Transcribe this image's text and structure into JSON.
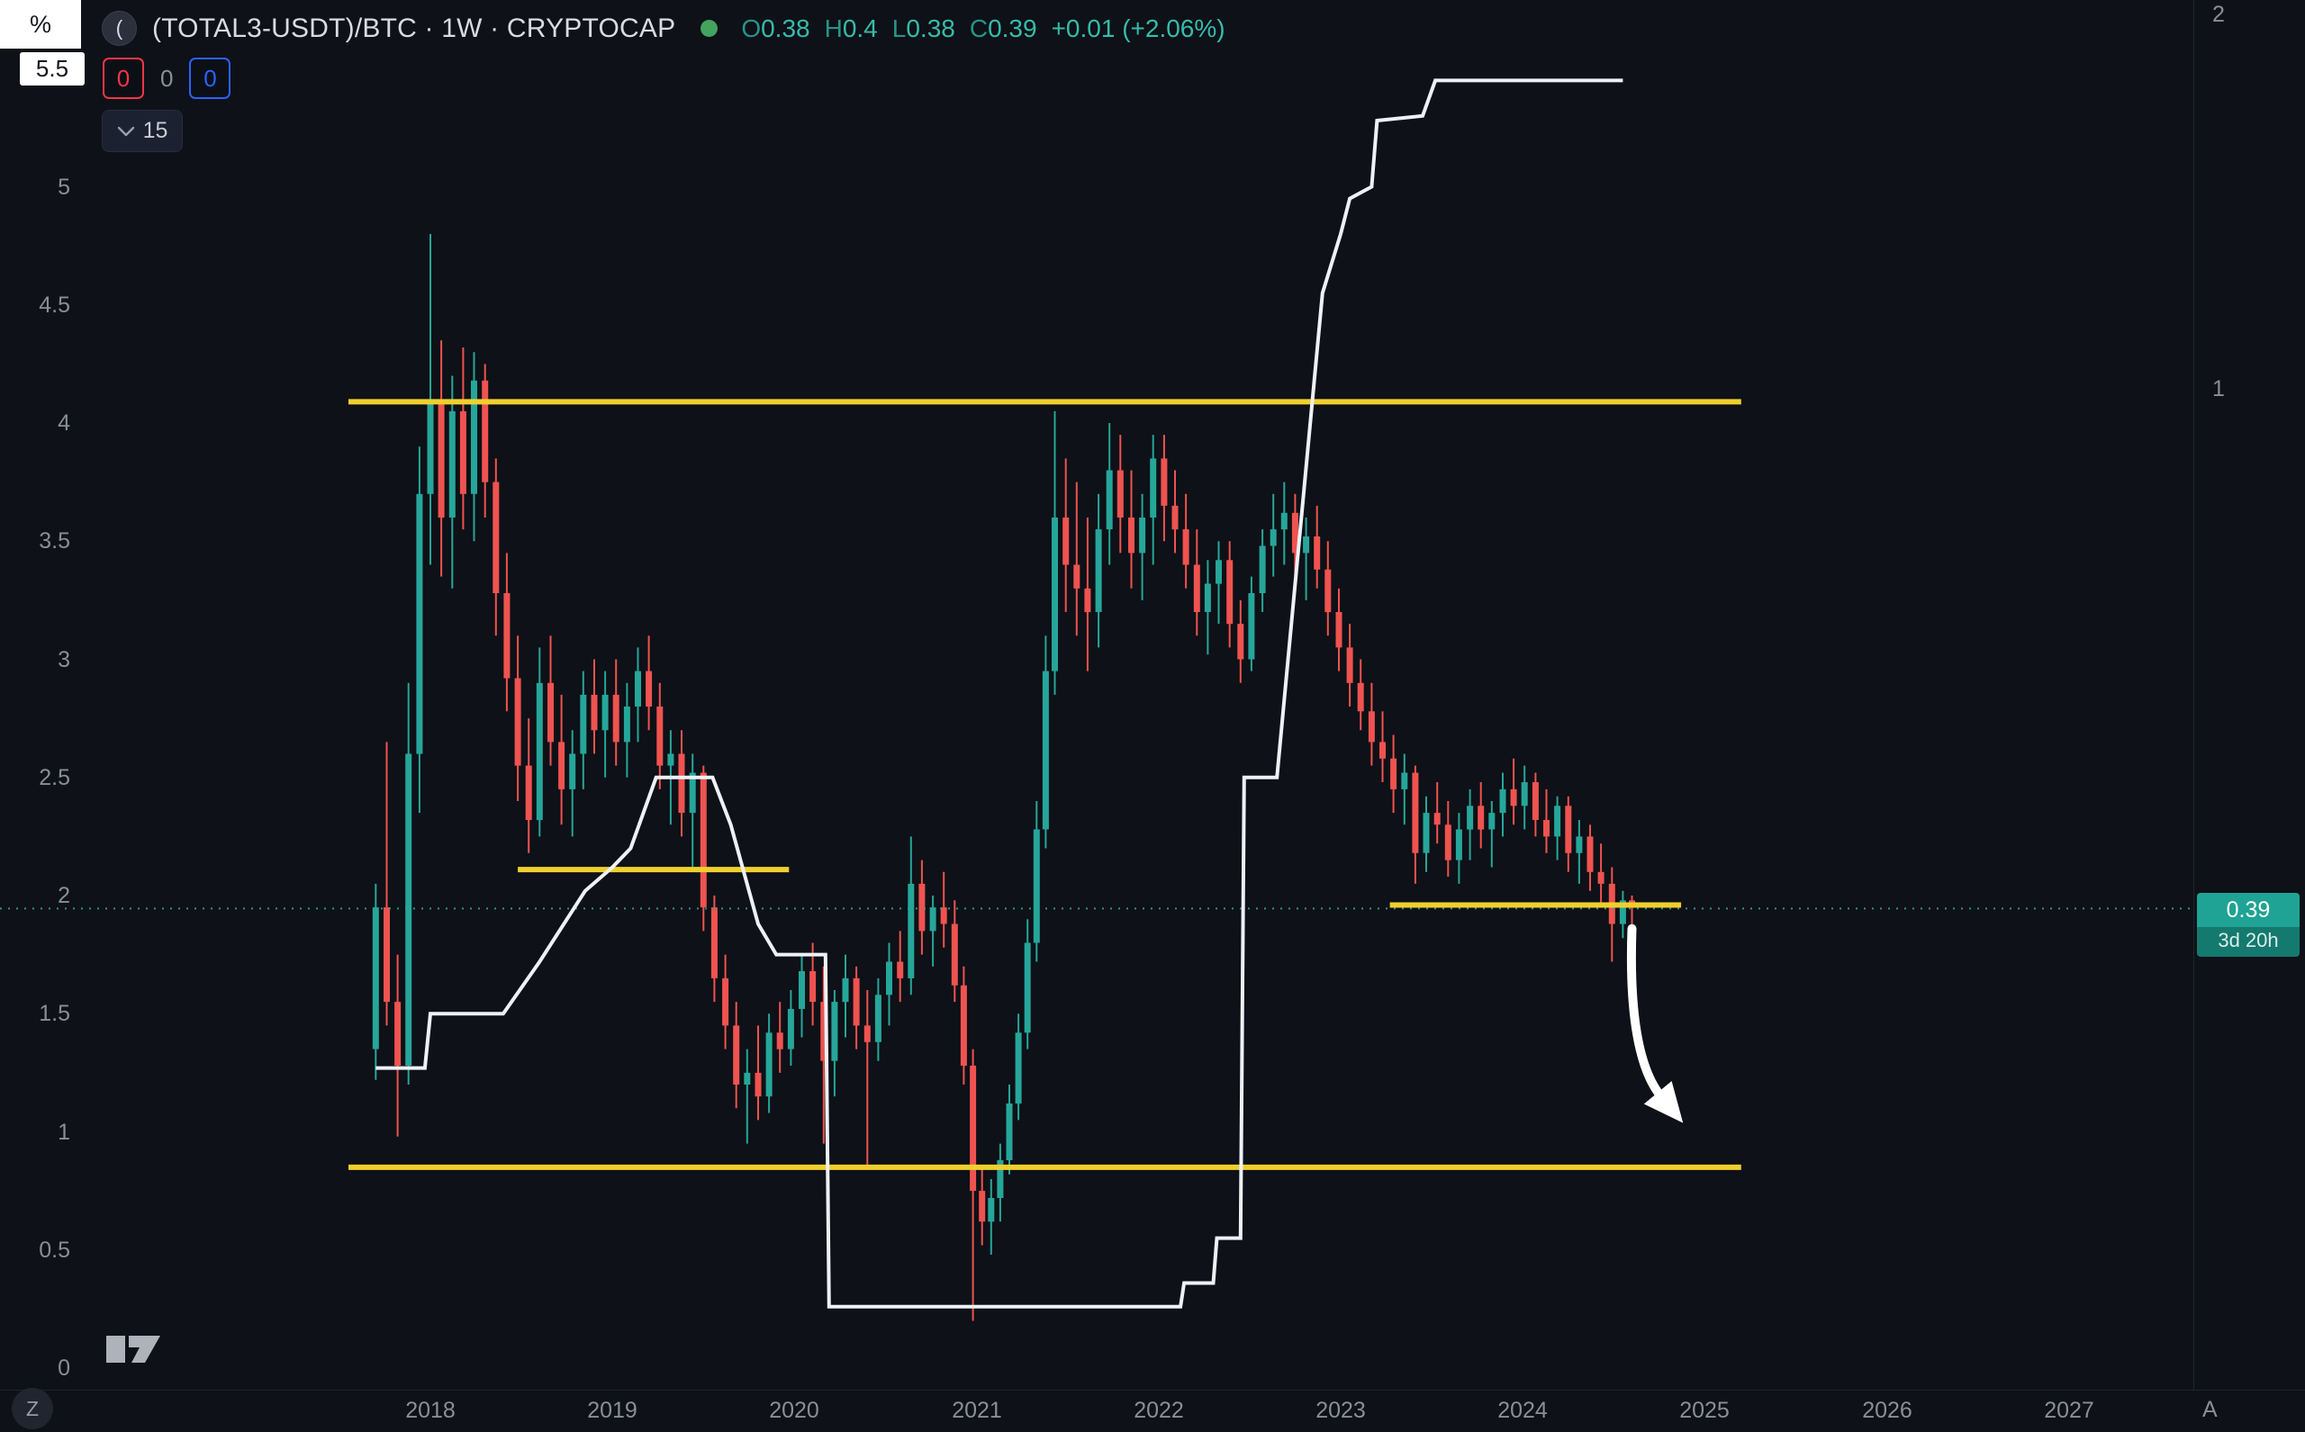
{
  "header": {
    "percent_button": "%",
    "axis_top_label": "5.5",
    "counters": {
      "red": "0",
      "neutral": "0",
      "blue": "0"
    },
    "interval_selector": "15",
    "symbol_icon": "(",
    "symbol_title": "(TOTAL3-USDT)/BTC · 1W · CRYPTOCAP",
    "ohlc": {
      "open_label": "O",
      "open": "0.38",
      "high_label": "H",
      "high": "0.4",
      "low_label": "L",
      "low": "0.38",
      "close_label": "C",
      "close": "0.39",
      "change": "+0.01 (+2.06%)"
    }
  },
  "axes": {
    "left_labels": [
      "5",
      "4.5",
      "4",
      "3.5",
      "3",
      "2.5",
      "2",
      "1.5",
      "1",
      "0.5",
      "0"
    ],
    "years": [
      "2018",
      "2019",
      "2020",
      "2021",
      "2022",
      "2023",
      "2024",
      "2025",
      "2026",
      "2027"
    ]
  },
  "price_label": {
    "value": "0.39",
    "countdown": "3d 20h"
  },
  "footer": {
    "left_badge": "Z",
    "right_badge": "A"
  },
  "colors": {
    "background": "#0e1117",
    "up": "#26a69a",
    "down": "#ef5350",
    "level_yellow": "#f0cf2e",
    "overlay_white": "#eef1f6",
    "accent_teal": "#36bcab",
    "badge_teal": "#1fa395",
    "counter_red": "#f23645",
    "counter_blue": "#2962ff",
    "axis_text": "#8a8e98",
    "drawing_white": "#ffffff"
  },
  "chart_data": {
    "type": "candlestick",
    "title": "(TOTAL3-USDT)/BTC · 1W · CRYPTOCAP",
    "interval": "1W",
    "x_axis": {
      "unit": "year",
      "range": [
        2017.55,
        2027.6
      ],
      "ticks": [
        2018,
        2019,
        2020,
        2021,
        2022,
        2023,
        2024,
        2025,
        2026,
        2027
      ]
    },
    "left_axis": {
      "range": [
        0,
        5.5
      ],
      "ticks": [
        0,
        0.5,
        1,
        1.5,
        2,
        2.5,
        3,
        3.5,
        4,
        4.5,
        5,
        5.5
      ]
    },
    "right_axis": {
      "scale": "log2",
      "labels": [
        2,
        1
      ],
      "anchor": {
        "right_value": 0.39,
        "left_value": 1.945
      }
    },
    "current_price": {
      "left_scale": 1.945,
      "right_scale": 0.39,
      "display": "0.39",
      "bar_countdown": "3d 20h"
    },
    "candles_ohlc": [
      [
        2017.7,
        1.35,
        2.05,
        1.22,
        1.95
      ],
      [
        2017.76,
        1.95,
        2.65,
        1.45,
        1.55
      ],
      [
        2017.82,
        1.55,
        1.75,
        0.98,
        1.28
      ],
      [
        2017.88,
        1.28,
        2.9,
        1.2,
        2.6
      ],
      [
        2017.94,
        2.6,
        3.9,
        2.35,
        3.7
      ],
      [
        2018.0,
        3.7,
        4.8,
        3.4,
        4.1
      ],
      [
        2018.06,
        4.1,
        4.35,
        3.35,
        3.6
      ],
      [
        2018.12,
        3.6,
        4.2,
        3.3,
        4.05
      ],
      [
        2018.18,
        4.05,
        4.32,
        3.55,
        3.7
      ],
      [
        2018.24,
        3.7,
        4.3,
        3.5,
        4.18
      ],
      [
        2018.3,
        4.18,
        4.25,
        3.6,
        3.75
      ],
      [
        2018.36,
        3.75,
        3.85,
        3.1,
        3.28
      ],
      [
        2018.42,
        3.28,
        3.45,
        2.78,
        2.92
      ],
      [
        2018.48,
        2.92,
        3.1,
        2.4,
        2.55
      ],
      [
        2018.54,
        2.55,
        2.75,
        2.18,
        2.32
      ],
      [
        2018.6,
        2.32,
        3.05,
        2.25,
        2.9
      ],
      [
        2018.66,
        2.9,
        3.1,
        2.55,
        2.65
      ],
      [
        2018.72,
        2.65,
        2.85,
        2.3,
        2.45
      ],
      [
        2018.78,
        2.45,
        2.7,
        2.25,
        2.6
      ],
      [
        2018.84,
        2.6,
        2.95,
        2.45,
        2.85
      ],
      [
        2018.9,
        2.85,
        3.0,
        2.6,
        2.7
      ],
      [
        2018.96,
        2.7,
        2.95,
        2.5,
        2.85
      ],
      [
        2019.02,
        2.85,
        3.0,
        2.55,
        2.65
      ],
      [
        2019.08,
        2.65,
        2.9,
        2.5,
        2.8
      ],
      [
        2019.14,
        2.8,
        3.05,
        2.65,
        2.95
      ],
      [
        2019.2,
        2.95,
        3.1,
        2.7,
        2.8
      ],
      [
        2019.26,
        2.8,
        2.9,
        2.45,
        2.55
      ],
      [
        2019.32,
        2.55,
        2.7,
        2.3,
        2.6
      ],
      [
        2019.38,
        2.6,
        2.7,
        2.25,
        2.35
      ],
      [
        2019.44,
        2.35,
        2.6,
        2.1,
        2.52
      ],
      [
        2019.5,
        2.52,
        2.55,
        1.85,
        1.95
      ],
      [
        2019.56,
        1.95,
        2.0,
        1.55,
        1.65
      ],
      [
        2019.62,
        1.65,
        1.75,
        1.35,
        1.45
      ],
      [
        2019.68,
        1.45,
        1.55,
        1.1,
        1.2
      ],
      [
        2019.74,
        1.2,
        1.35,
        0.95,
        1.25
      ],
      [
        2019.8,
        1.25,
        1.45,
        1.05,
        1.15
      ],
      [
        2019.86,
        1.15,
        1.5,
        1.08,
        1.42
      ],
      [
        2019.92,
        1.42,
        1.55,
        1.25,
        1.35
      ],
      [
        2019.98,
        1.35,
        1.6,
        1.28,
        1.52
      ],
      [
        2020.04,
        1.52,
        1.75,
        1.4,
        1.68
      ],
      [
        2020.1,
        1.68,
        1.8,
        1.45,
        1.55
      ],
      [
        2020.16,
        1.55,
        1.7,
        0.95,
        1.3
      ],
      [
        2020.22,
        1.3,
        1.6,
        1.15,
        1.55
      ],
      [
        2020.28,
        1.55,
        1.75,
        1.4,
        1.65
      ],
      [
        2020.34,
        1.65,
        1.7,
        1.35,
        1.45
      ],
      [
        2020.4,
        1.45,
        1.6,
        0.85,
        1.38
      ],
      [
        2020.46,
        1.38,
        1.65,
        1.3,
        1.58
      ],
      [
        2020.52,
        1.58,
        1.8,
        1.45,
        1.72
      ],
      [
        2020.58,
        1.72,
        1.85,
        1.55,
        1.65
      ],
      [
        2020.64,
        1.65,
        2.25,
        1.58,
        2.05
      ],
      [
        2020.7,
        2.05,
        2.15,
        1.75,
        1.85
      ],
      [
        2020.76,
        1.85,
        2.0,
        1.7,
        1.95
      ],
      [
        2020.82,
        1.95,
        2.1,
        1.78,
        1.88
      ],
      [
        2020.88,
        1.88,
        1.98,
        1.55,
        1.62
      ],
      [
        2020.93,
        1.62,
        1.7,
        1.2,
        1.28
      ],
      [
        2020.98,
        1.28,
        1.35,
        0.2,
        0.75
      ],
      [
        2021.03,
        0.75,
        0.85,
        0.52,
        0.62
      ],
      [
        2021.08,
        0.62,
        0.8,
        0.48,
        0.72
      ],
      [
        2021.13,
        0.72,
        0.95,
        0.62,
        0.88
      ],
      [
        2021.18,
        0.88,
        1.2,
        0.82,
        1.12
      ],
      [
        2021.23,
        1.12,
        1.5,
        1.05,
        1.42
      ],
      [
        2021.28,
        1.42,
        1.9,
        1.35,
        1.8
      ],
      [
        2021.33,
        1.8,
        2.4,
        1.72,
        2.28
      ],
      [
        2021.38,
        2.28,
        3.1,
        2.2,
        2.95
      ],
      [
        2021.43,
        2.95,
        4.05,
        2.85,
        3.6
      ],
      [
        2021.49,
        3.6,
        3.85,
        3.2,
        3.4
      ],
      [
        2021.55,
        3.4,
        3.75,
        3.1,
        3.3
      ],
      [
        2021.61,
        3.3,
        3.6,
        2.95,
        3.2
      ],
      [
        2021.67,
        3.2,
        3.7,
        3.05,
        3.55
      ],
      [
        2021.73,
        3.55,
        4.0,
        3.4,
        3.8
      ],
      [
        2021.79,
        3.8,
        3.95,
        3.45,
        3.6
      ],
      [
        2021.85,
        3.6,
        3.8,
        3.3,
        3.45
      ],
      [
        2021.91,
        3.45,
        3.7,
        3.25,
        3.6
      ],
      [
        2021.97,
        3.6,
        3.95,
        3.4,
        3.85
      ],
      [
        2022.03,
        3.85,
        3.95,
        3.5,
        3.65
      ],
      [
        2022.09,
        3.65,
        3.8,
        3.45,
        3.55
      ],
      [
        2022.15,
        3.55,
        3.7,
        3.3,
        3.4
      ],
      [
        2022.21,
        3.4,
        3.55,
        3.1,
        3.2
      ],
      [
        2022.27,
        3.2,
        3.42,
        3.02,
        3.32
      ],
      [
        2022.33,
        3.32,
        3.5,
        3.15,
        3.42
      ],
      [
        2022.39,
        3.42,
        3.5,
        3.05,
        3.15
      ],
      [
        2022.45,
        3.15,
        3.25,
        2.9,
        3.0
      ],
      [
        2022.51,
        3.0,
        3.35,
        2.95,
        3.28
      ],
      [
        2022.57,
        3.28,
        3.55,
        3.2,
        3.48
      ],
      [
        2022.63,
        3.48,
        3.7,
        3.35,
        3.55
      ],
      [
        2022.69,
        3.55,
        3.75,
        3.4,
        3.62
      ],
      [
        2022.75,
        3.62,
        3.7,
        3.35,
        3.45
      ],
      [
        2022.81,
        3.45,
        3.6,
        3.25,
        3.52
      ],
      [
        2022.87,
        3.52,
        3.65,
        3.3,
        3.38
      ],
      [
        2022.93,
        3.38,
        3.5,
        3.1,
        3.2
      ],
      [
        2022.99,
        3.2,
        3.3,
        2.95,
        3.05
      ],
      [
        2023.05,
        3.05,
        3.15,
        2.8,
        2.9
      ],
      [
        2023.11,
        2.9,
        3.0,
        2.7,
        2.78
      ],
      [
        2023.17,
        2.78,
        2.9,
        2.55,
        2.65
      ],
      [
        2023.23,
        2.65,
        2.78,
        2.48,
        2.58
      ],
      [
        2023.29,
        2.58,
        2.68,
        2.35,
        2.45
      ],
      [
        2023.35,
        2.45,
        2.6,
        2.3,
        2.52
      ],
      [
        2023.41,
        2.52,
        2.55,
        2.05,
        2.18
      ],
      [
        2023.47,
        2.18,
        2.42,
        2.1,
        2.35
      ],
      [
        2023.53,
        2.35,
        2.48,
        2.22,
        2.3
      ],
      [
        2023.59,
        2.3,
        2.4,
        2.08,
        2.15
      ],
      [
        2023.65,
        2.15,
        2.35,
        2.05,
        2.28
      ],
      [
        2023.71,
        2.28,
        2.45,
        2.15,
        2.38
      ],
      [
        2023.77,
        2.38,
        2.48,
        2.2,
        2.28
      ],
      [
        2023.83,
        2.28,
        2.4,
        2.12,
        2.35
      ],
      [
        2023.89,
        2.35,
        2.52,
        2.25,
        2.45
      ],
      [
        2023.95,
        2.45,
        2.58,
        2.3,
        2.38
      ],
      [
        2024.01,
        2.38,
        2.55,
        2.28,
        2.48
      ],
      [
        2024.07,
        2.48,
        2.52,
        2.25,
        2.32
      ],
      [
        2024.13,
        2.32,
        2.45,
        2.18,
        2.25
      ],
      [
        2024.19,
        2.25,
        2.42,
        2.15,
        2.38
      ],
      [
        2024.25,
        2.38,
        2.42,
        2.1,
        2.18
      ],
      [
        2024.31,
        2.18,
        2.32,
        2.05,
        2.25
      ],
      [
        2024.37,
        2.25,
        2.3,
        2.02,
        2.1
      ],
      [
        2024.43,
        2.1,
        2.22,
        1.95,
        2.05
      ],
      [
        2024.49,
        2.05,
        2.12,
        1.72,
        1.88
      ],
      [
        2024.55,
        1.88,
        2.02,
        1.82,
        1.98
      ],
      [
        2024.6,
        1.98,
        2.0,
        1.86,
        1.95
      ]
    ],
    "overlay_line": {
      "name": "white-step-line",
      "points": [
        [
          2017.7,
          1.27
        ],
        [
          2017.97,
          1.27
        ],
        [
          2018.0,
          1.5
        ],
        [
          2018.4,
          1.5
        ],
        [
          2018.6,
          1.72
        ],
        [
          2018.85,
          2.02
        ],
        [
          2019.0,
          2.12
        ],
        [
          2019.1,
          2.2
        ],
        [
          2019.24,
          2.5
        ],
        [
          2019.55,
          2.5
        ],
        [
          2019.65,
          2.3
        ],
        [
          2019.8,
          1.88
        ],
        [
          2019.9,
          1.75
        ],
        [
          2020.17,
          1.75
        ],
        [
          2020.19,
          0.26
        ],
        [
          2022.12,
          0.26
        ],
        [
          2022.14,
          0.36
        ],
        [
          2022.3,
          0.36
        ],
        [
          2022.32,
          0.55
        ],
        [
          2022.45,
          0.55
        ],
        [
          2022.47,
          2.5
        ],
        [
          2022.65,
          2.5
        ],
        [
          2022.9,
          4.55
        ],
        [
          2023.0,
          4.8
        ],
        [
          2023.05,
          4.95
        ],
        [
          2023.17,
          5.0
        ],
        [
          2023.2,
          5.28
        ],
        [
          2023.45,
          5.3
        ],
        [
          2023.52,
          5.45
        ],
        [
          2024.55,
          5.45
        ]
      ]
    },
    "horizontal_levels": [
      {
        "price": 4.09,
        "from": 2017.55,
        "to": 2025.2
      },
      {
        "price": 2.11,
        "from": 2018.48,
        "to": 2019.97
      },
      {
        "price": 1.96,
        "from": 2023.27,
        "to": 2024.87
      },
      {
        "price": 0.85,
        "from": 2017.55,
        "to": 2025.2
      }
    ],
    "arrow_annotation": {
      "from": [
        2024.6,
        1.86
      ],
      "to": [
        2024.8,
        1.05
      ]
    }
  }
}
